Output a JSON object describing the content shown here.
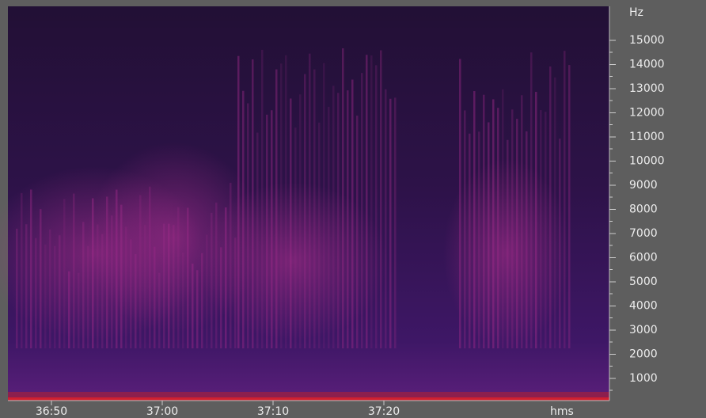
{
  "y_axis": {
    "unit": "Hz",
    "labels": [
      "15000",
      "14000",
      "13000",
      "12000",
      "11000",
      "10000",
      "9000",
      "8000",
      "7000",
      "6000",
      "5000",
      "4000",
      "3000",
      "2000",
      "1000"
    ]
  },
  "x_axis": {
    "labels": [
      "36:50",
      "37:00",
      "37:10",
      "37:20"
    ],
    "unit": "hms"
  }
}
